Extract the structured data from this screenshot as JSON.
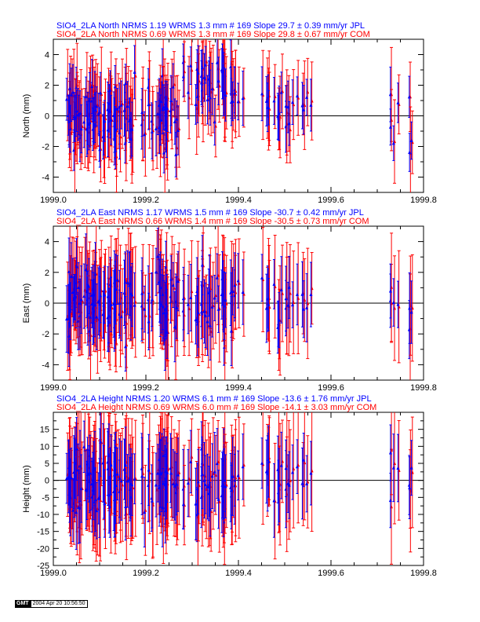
{
  "colors": {
    "jpl": "#0000ff",
    "com": "#ff0000",
    "axis": "#000000"
  },
  "gmt_logo": "GMT",
  "timestamp": "2004 Apr 20 10:56:50",
  "chart_data": [
    {
      "type": "scatter",
      "component": "north",
      "title_jpl": "SIO4_2LA North NRMS 1.19 WRMS  1.3 mm # 169 Slope   29.7 ±  0.39 mm/yr JPL",
      "title_com": "SIO4_2LA North NRMS 0.69 WRMS  1.3 mm # 169 Slope   29.8 ±  0.67 mm/yr COM",
      "ylabel": "North (mm)",
      "xlabel": "",
      "xlim": [
        1999.0,
        1999.8
      ],
      "ylim": [
        -5,
        5
      ],
      "xticks": [
        "1999.0",
        "1999.2",
        "1999.4",
        "1999.6",
        "1999.8"
      ],
      "yticks": [
        "-4",
        "-2",
        "0",
        "2",
        "4"
      ],
      "ytick_values": [
        -4,
        -2,
        0,
        2,
        4
      ],
      "minor_step": 1,
      "sigma_jpl": 0.7,
      "sigma_com": 1.2,
      "n": 169,
      "series": [
        {
          "name": "JPL",
          "wrms": 1.3,
          "slope": 29.7,
          "slope_err": 0.39
        },
        {
          "name": "COM",
          "wrms": 1.3,
          "slope": 29.8,
          "slope_err": 0.67
        }
      ]
    },
    {
      "type": "scatter",
      "component": "east",
      "title_jpl": "SIO4_2LA East NRMS 1.17 WRMS  1.5 mm # 169 Slope  -30.7 ±  0.42 mm/yr JPL",
      "title_com": "SIO4_2LA East NRMS 0.66 WRMS  1.4 mm # 169 Slope  -30.5 ±  0.73 mm/yr COM",
      "ylabel": "East (mm)",
      "xlabel": "",
      "xlim": [
        1999.0,
        1999.8
      ],
      "ylim": [
        -5,
        5
      ],
      "xticks": [
        "1999.0",
        "1999.2",
        "1999.4",
        "1999.6",
        "1999.8"
      ],
      "yticks": [
        "-4",
        "-2",
        "0",
        "2",
        "4"
      ],
      "ytick_values": [
        -4,
        -2,
        0,
        2,
        4
      ],
      "minor_step": 1,
      "sigma_jpl": 0.9,
      "sigma_com": 1.4,
      "n": 169,
      "series": [
        {
          "name": "JPL",
          "wrms": 1.5,
          "slope": -30.7,
          "slope_err": 0.42
        },
        {
          "name": "COM",
          "wrms": 1.4,
          "slope": -30.5,
          "slope_err": 0.73
        }
      ]
    },
    {
      "type": "scatter",
      "component": "height",
      "title_jpl": "SIO4_2LA Height NRMS 1.20 WRMS  6.1 mm # 169 Slope  -13.6 ±  1.76 mm/yr JPL",
      "title_com": "SIO4_2LA Height NRMS 0.69 WRMS  6.0 mm # 169 Slope  -14.1 ±  3.03 mm/yr COM",
      "ylabel": "Height (mm)",
      "xlabel": "",
      "xlim": [
        1999.0,
        1999.8
      ],
      "ylim": [
        -25,
        20
      ],
      "xticks": [
        "1999.0",
        "1999.2",
        "1999.4",
        "1999.6",
        "1999.8"
      ],
      "yticks": [
        "-25",
        "-20",
        "-15",
        "-10",
        "-5",
        "0",
        "5",
        "10",
        "15"
      ],
      "ytick_values": [
        -25,
        -20,
        -15,
        -10,
        -5,
        0,
        5,
        10,
        15
      ],
      "minor_step": 2.5,
      "sigma_jpl": 4.5,
      "sigma_com": 7.0,
      "n": 169,
      "series": [
        {
          "name": "JPL",
          "wrms": 6.1,
          "slope": -13.6,
          "slope_err": 1.76
        },
        {
          "name": "COM",
          "wrms": 6.0,
          "slope": -14.1,
          "slope_err": 3.03
        }
      ]
    }
  ]
}
